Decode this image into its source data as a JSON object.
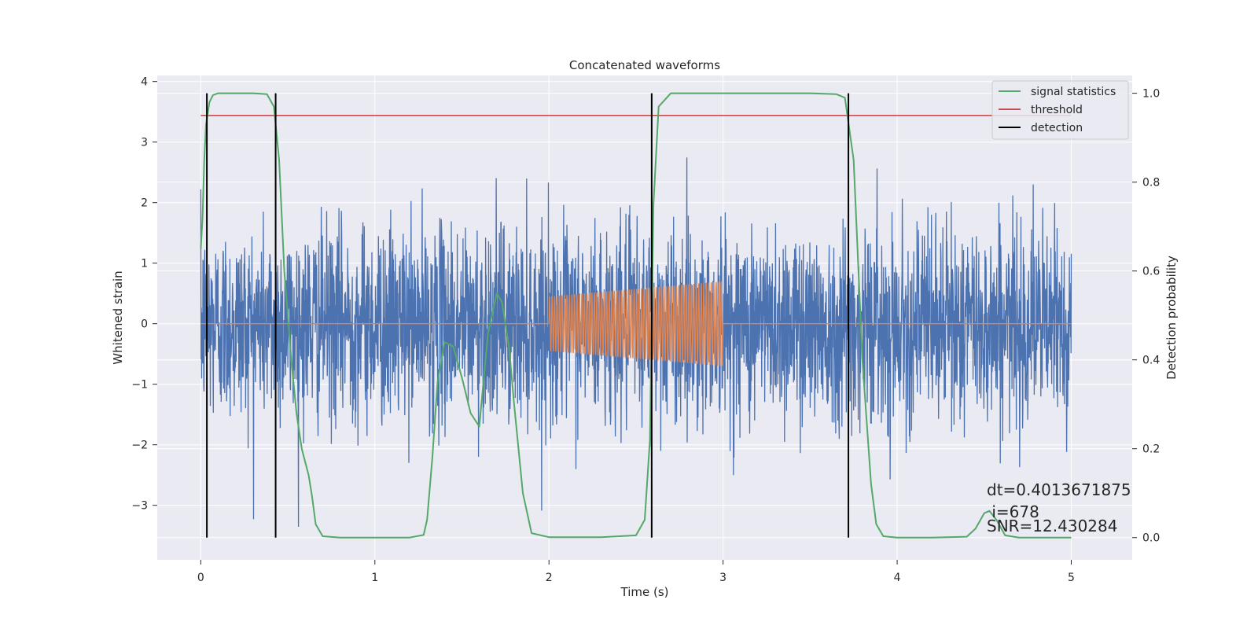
{
  "chart_data": {
    "type": "line",
    "title": "Concatenated waveforms",
    "xlabel": "Time (s)",
    "ylabel": "Whitened strain",
    "y2label": "Detection probability",
    "xlim": [
      -0.25,
      5.35
    ],
    "ylim": [
      -3.9,
      4.1
    ],
    "y2lim": [
      -0.05,
      1.04
    ],
    "xticks": [
      0,
      1,
      2,
      3,
      4,
      5
    ],
    "xtick_labels": [
      "0",
      "1",
      "2",
      "3",
      "4",
      "5"
    ],
    "yticks": [
      -3,
      -2,
      -1,
      0,
      1,
      2,
      3,
      4
    ],
    "ytick_labels": [
      "−3",
      "−2",
      "−1",
      "0",
      "1",
      "2",
      "3",
      "4"
    ],
    "y2ticks": [
      0.0,
      0.2,
      0.4,
      0.6,
      0.8,
      1.0
    ],
    "y2tick_labels": [
      "0.0",
      "0.2",
      "0.4",
      "0.6",
      "0.8",
      "1.0"
    ],
    "grid": true,
    "legend_position": "top-right",
    "colors": {
      "noise": "#4c72b0",
      "injection": "#dd8452",
      "signal_statistics": "#55a868",
      "threshold": "#c44e52",
      "detection": "#000000",
      "plot_bg": "#eaeaf2",
      "grid": "#ffffff"
    },
    "series": [
      {
        "name": "signal statistics",
        "axis": "right",
        "x": [
          0.0,
          0.01,
          0.02,
          0.03,
          0.05,
          0.07,
          0.1,
          0.2,
          0.3,
          0.38,
          0.42,
          0.45,
          0.48,
          0.52,
          0.55,
          0.58,
          0.6,
          0.62,
          0.64,
          0.66,
          0.7,
          0.8,
          1.0,
          1.2,
          1.28,
          1.3,
          1.33,
          1.36,
          1.4,
          1.45,
          1.5,
          1.55,
          1.6,
          1.65,
          1.7,
          1.73,
          1.77,
          1.8,
          1.85,
          1.9,
          2.0,
          2.3,
          2.5,
          2.55,
          2.58,
          2.6,
          2.63,
          2.7,
          2.9,
          3.2,
          3.5,
          3.65,
          3.7,
          3.75,
          3.8,
          3.85,
          3.88,
          3.92,
          4.0,
          4.2,
          4.4,
          4.45,
          4.5,
          4.53,
          4.57,
          4.62,
          4.7,
          4.8,
          5.0
        ],
        "values": [
          0.65,
          0.72,
          0.85,
          0.93,
          0.98,
          0.996,
          1.0,
          1.0,
          1.0,
          0.998,
          0.97,
          0.85,
          0.6,
          0.4,
          0.28,
          0.2,
          0.17,
          0.14,
          0.09,
          0.03,
          0.003,
          0.0,
          0.0,
          0.0,
          0.006,
          0.04,
          0.18,
          0.35,
          0.44,
          0.43,
          0.36,
          0.28,
          0.25,
          0.46,
          0.55,
          0.53,
          0.43,
          0.3,
          0.1,
          0.01,
          0.001,
          0.001,
          0.005,
          0.04,
          0.22,
          0.75,
          0.97,
          1.0,
          1.0,
          1.0,
          1.0,
          0.998,
          0.99,
          0.85,
          0.4,
          0.12,
          0.03,
          0.003,
          0.0,
          0.0,
          0.002,
          0.02,
          0.055,
          0.06,
          0.04,
          0.005,
          0.0,
          0.0,
          0.0
        ]
      },
      {
        "name": "threshold",
        "axis": "right",
        "x": [
          0.0,
          5.0
        ],
        "values": [
          0.95,
          0.95
        ]
      },
      {
        "name": "detection",
        "axis": "right",
        "type": "vlines",
        "x": [
          0.035,
          0.43,
          2.59,
          3.72
        ],
        "ymin": 0.0,
        "ymax": 1.0
      },
      {
        "axis": "left",
        "type": "noise",
        "x_range": [
          0.0,
          5.0
        ],
        "amplitude_typical": 0.8,
        "amplitude_peak": 3.8
      },
      {
        "axis": "left",
        "type": "chirp",
        "x_range": [
          2.0,
          3.0
        ],
        "amplitude_start": 0.45,
        "amplitude_end": 0.7,
        "cycles": 70
      }
    ],
    "annotations": [
      "dt=0.4013671875",
      " i=678",
      "SNR=12.430284"
    ]
  }
}
